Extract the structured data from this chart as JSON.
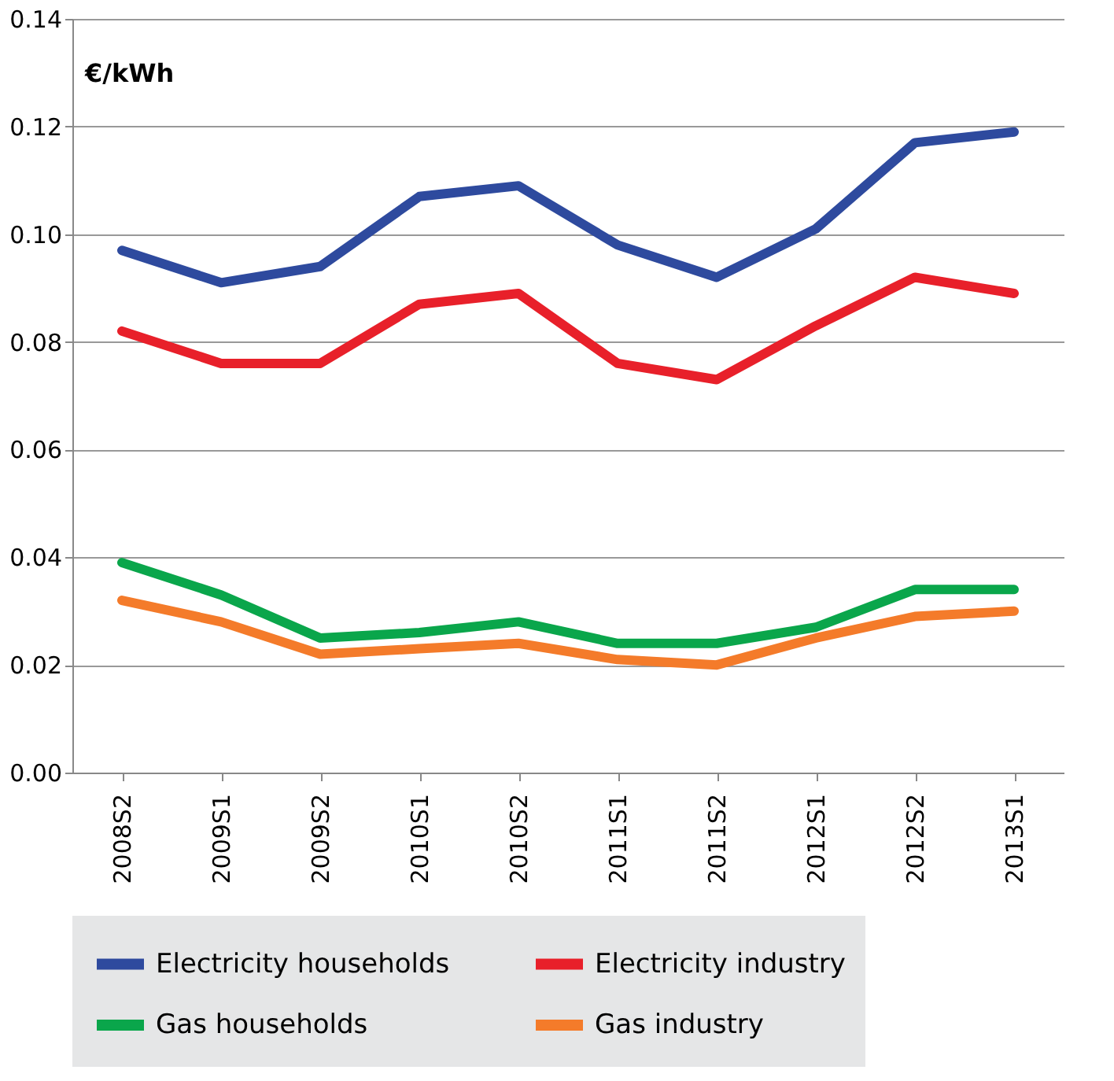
{
  "chart_data": {
    "type": "line",
    "ylabel": "€/kWh",
    "categories": [
      "2008S2",
      "2009S1",
      "2009S2",
      "2010S1",
      "2010S2",
      "2011S1",
      "2011S2",
      "2012S1",
      "2012S2",
      "2013S1"
    ],
    "series": [
      {
        "name": "Electricity households",
        "color": "#2e4a9e",
        "values": [
          0.097,
          0.091,
          0.094,
          0.107,
          0.109,
          0.098,
          0.092,
          0.101,
          0.117,
          0.119
        ]
      },
      {
        "name": "Electricity industry",
        "color": "#e8202a",
        "values": [
          0.082,
          0.076,
          0.076,
          0.087,
          0.089,
          0.076,
          0.073,
          0.083,
          0.092,
          0.089
        ]
      },
      {
        "name": "Gas households",
        "color": "#0aa64b",
        "values": [
          0.039,
          0.033,
          0.025,
          0.026,
          0.028,
          0.024,
          0.024,
          0.027,
          0.034,
          0.034
        ]
      },
      {
        "name": "Gas industry",
        "color": "#f47b2a",
        "values": [
          0.032,
          0.028,
          0.022,
          0.023,
          0.024,
          0.021,
          0.02,
          0.025,
          0.029,
          0.03
        ]
      }
    ],
    "ylim": [
      0,
      0.14
    ],
    "yticks": [
      {
        "value": 0,
        "label": "0.00"
      },
      {
        "value": 0.02,
        "label": "0.02"
      },
      {
        "value": 0.04,
        "label": "0.04"
      },
      {
        "value": 0.06,
        "label": "0.06"
      },
      {
        "value": 0.08,
        "label": "0.08"
      },
      {
        "value": 0.1,
        "label": "0.10"
      },
      {
        "value": 0.12,
        "label": "0.12"
      },
      {
        "value": 0.14,
        "label": "0.14"
      }
    ],
    "grid": "y",
    "legend": "bottom",
    "marker": "none",
    "line_style": "solid"
  }
}
